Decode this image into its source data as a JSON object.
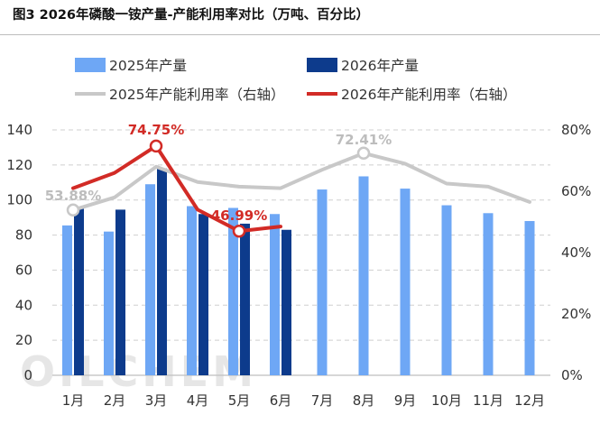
{
  "title": "图3 2026年磷酸一铵产量-产能利用率对比（万吨、百分比）",
  "watermark": "OILCHEM",
  "chart_data": {
    "type": "bar",
    "categories": [
      "1月",
      "2月",
      "3月",
      "4月",
      "5月",
      "6月",
      "7月",
      "8月",
      "9月",
      "10月",
      "11月",
      "12月"
    ],
    "series": [
      {
        "name": "2025年产量",
        "kind": "bar",
        "axis": "left",
        "color": "#6ea7f5",
        "values": [
          85.5,
          82.0,
          109.0,
          96.5,
          95.5,
          92.0,
          106.0,
          113.5,
          106.5,
          97.0,
          92.5,
          88.0
        ]
      },
      {
        "name": "2026年产量",
        "kind": "bar",
        "axis": "left",
        "color": "#0d3b8c",
        "values": [
          95.0,
          94.5,
          118.0,
          92.0,
          86.5,
          83.0,
          null,
          null,
          null,
          null,
          null,
          null
        ]
      },
      {
        "name": "2025年产能利用率（右轴）",
        "kind": "line",
        "axis": "right",
        "color": "#c8c8c8",
        "values": [
          53.88,
          58.0,
          68.0,
          63.0,
          61.5,
          61.0,
          67.0,
          72.41,
          69.0,
          62.5,
          61.5,
          56.5
        ]
      },
      {
        "name": "2026年产能利用率（右轴）",
        "kind": "line",
        "axis": "right",
        "color": "#d22b26",
        "values": [
          61.0,
          66.0,
          74.75,
          54.0,
          46.99,
          48.5,
          null,
          null,
          null,
          null,
          null,
          null
        ]
      }
    ],
    "data_labels": [
      {
        "series": 2,
        "index": 0,
        "text": "53.88%"
      },
      {
        "series": 3,
        "index": 2,
        "text": "74.75%"
      },
      {
        "series": 3,
        "index": 4,
        "text": "46.99%"
      },
      {
        "series": 2,
        "index": 7,
        "text": "72.41%"
      }
    ],
    "y_left": {
      "min": 0,
      "max": 140,
      "ticks": [
        "0",
        "20",
        "40",
        "60",
        "80",
        "100",
        "120",
        "140"
      ]
    },
    "y_right": {
      "min": 0,
      "max": 80,
      "ticks": [
        "0%",
        "20%",
        "40%",
        "60%",
        "80%"
      ]
    },
    "grid": true,
    "legend": "top"
  }
}
